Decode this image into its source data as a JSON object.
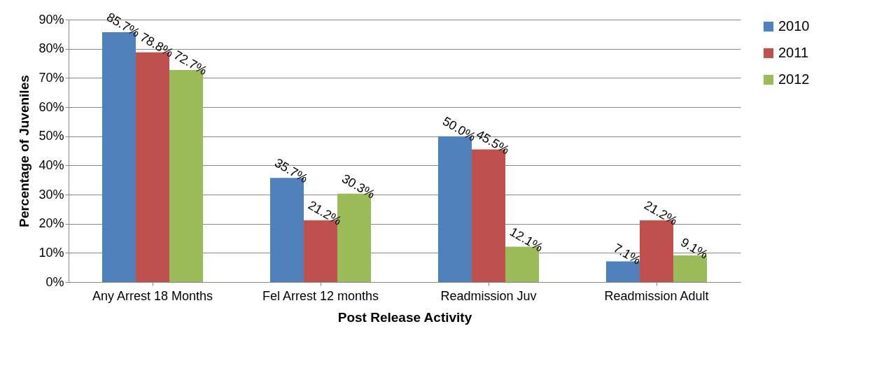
{
  "chart_data": {
    "type": "bar",
    "xlabel": "Post Release Activity",
    "ylabel": "Percentage of Juveniles",
    "categories": [
      "Any Arrest 18 Months",
      "Fel Arrest  12 months",
      "Readmission Juv",
      "Readmission Adult"
    ],
    "series": [
      {
        "name": "2010",
        "color": "#4f81bd",
        "values": [
          85.7,
          35.7,
          50.0,
          7.1
        ],
        "value_labels": [
          "85.7%",
          "35.7%",
          "50.0%",
          "7.1%"
        ]
      },
      {
        "name": "2011",
        "color": "#c0504d",
        "values": [
          78.8,
          21.2,
          45.5,
          21.2
        ],
        "value_labels": [
          "78.8%",
          "21.2%",
          "45.5%",
          "21.2%"
        ]
      },
      {
        "name": "2012",
        "color": "#9bbb59",
        "values": [
          72.7,
          30.3,
          12.1,
          9.1
        ],
        "value_labels": [
          "72.7%",
          "30.3%",
          "12.1%",
          "9.1%"
        ]
      }
    ],
    "ylim": [
      0,
      90
    ],
    "yticks": [
      {
        "value": 0,
        "label": "0%"
      },
      {
        "value": 10,
        "label": "10%"
      },
      {
        "value": 20,
        "label": "20%"
      },
      {
        "value": 30,
        "label": "30%"
      },
      {
        "value": 40,
        "label": "40%"
      },
      {
        "value": 50,
        "label": "50%"
      },
      {
        "value": 60,
        "label": "60%"
      },
      {
        "value": 70,
        "label": "70%"
      },
      {
        "value": 80,
        "label": "80%"
      },
      {
        "value": 90,
        "label": "90%"
      }
    ],
    "grid": "y",
    "legend": "right"
  }
}
